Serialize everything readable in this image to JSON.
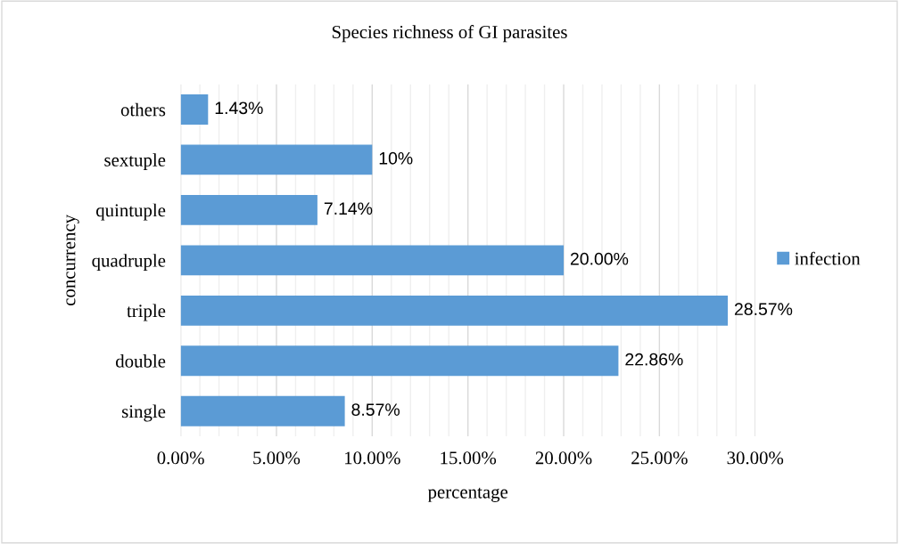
{
  "chart_data": {
    "type": "bar",
    "orientation": "horizontal",
    "title": "Species richness of GI parasites",
    "xlabel": "percentage",
    "ylabel": "concurrency",
    "categories": [
      "others",
      "sextuple",
      "quintuple",
      "quadruple",
      "triple",
      "double",
      "single"
    ],
    "series": [
      {
        "name": "infection",
        "color": "#5b9bd5",
        "values": [
          1.43,
          10,
          7.14,
          20,
          28.57,
          22.86,
          8.57
        ],
        "value_labels": [
          "1.43%",
          "10%",
          "7.14%",
          "20.00%",
          "28.57%",
          "22.86%",
          "8.57%"
        ]
      }
    ],
    "xlim": [
      0,
      30
    ],
    "xticks": [
      {
        "value": 0,
        "label": "0.00%"
      },
      {
        "value": 5,
        "label": "5.00%"
      },
      {
        "value": 10,
        "label": "10.00%"
      },
      {
        "value": 15,
        "label": "15.00%"
      },
      {
        "value": 20,
        "label": "20.00%"
      },
      {
        "value": 25,
        "label": "25.00%"
      },
      {
        "value": 30,
        "label": "30.00%"
      }
    ],
    "grid": "x",
    "legend": "right"
  }
}
